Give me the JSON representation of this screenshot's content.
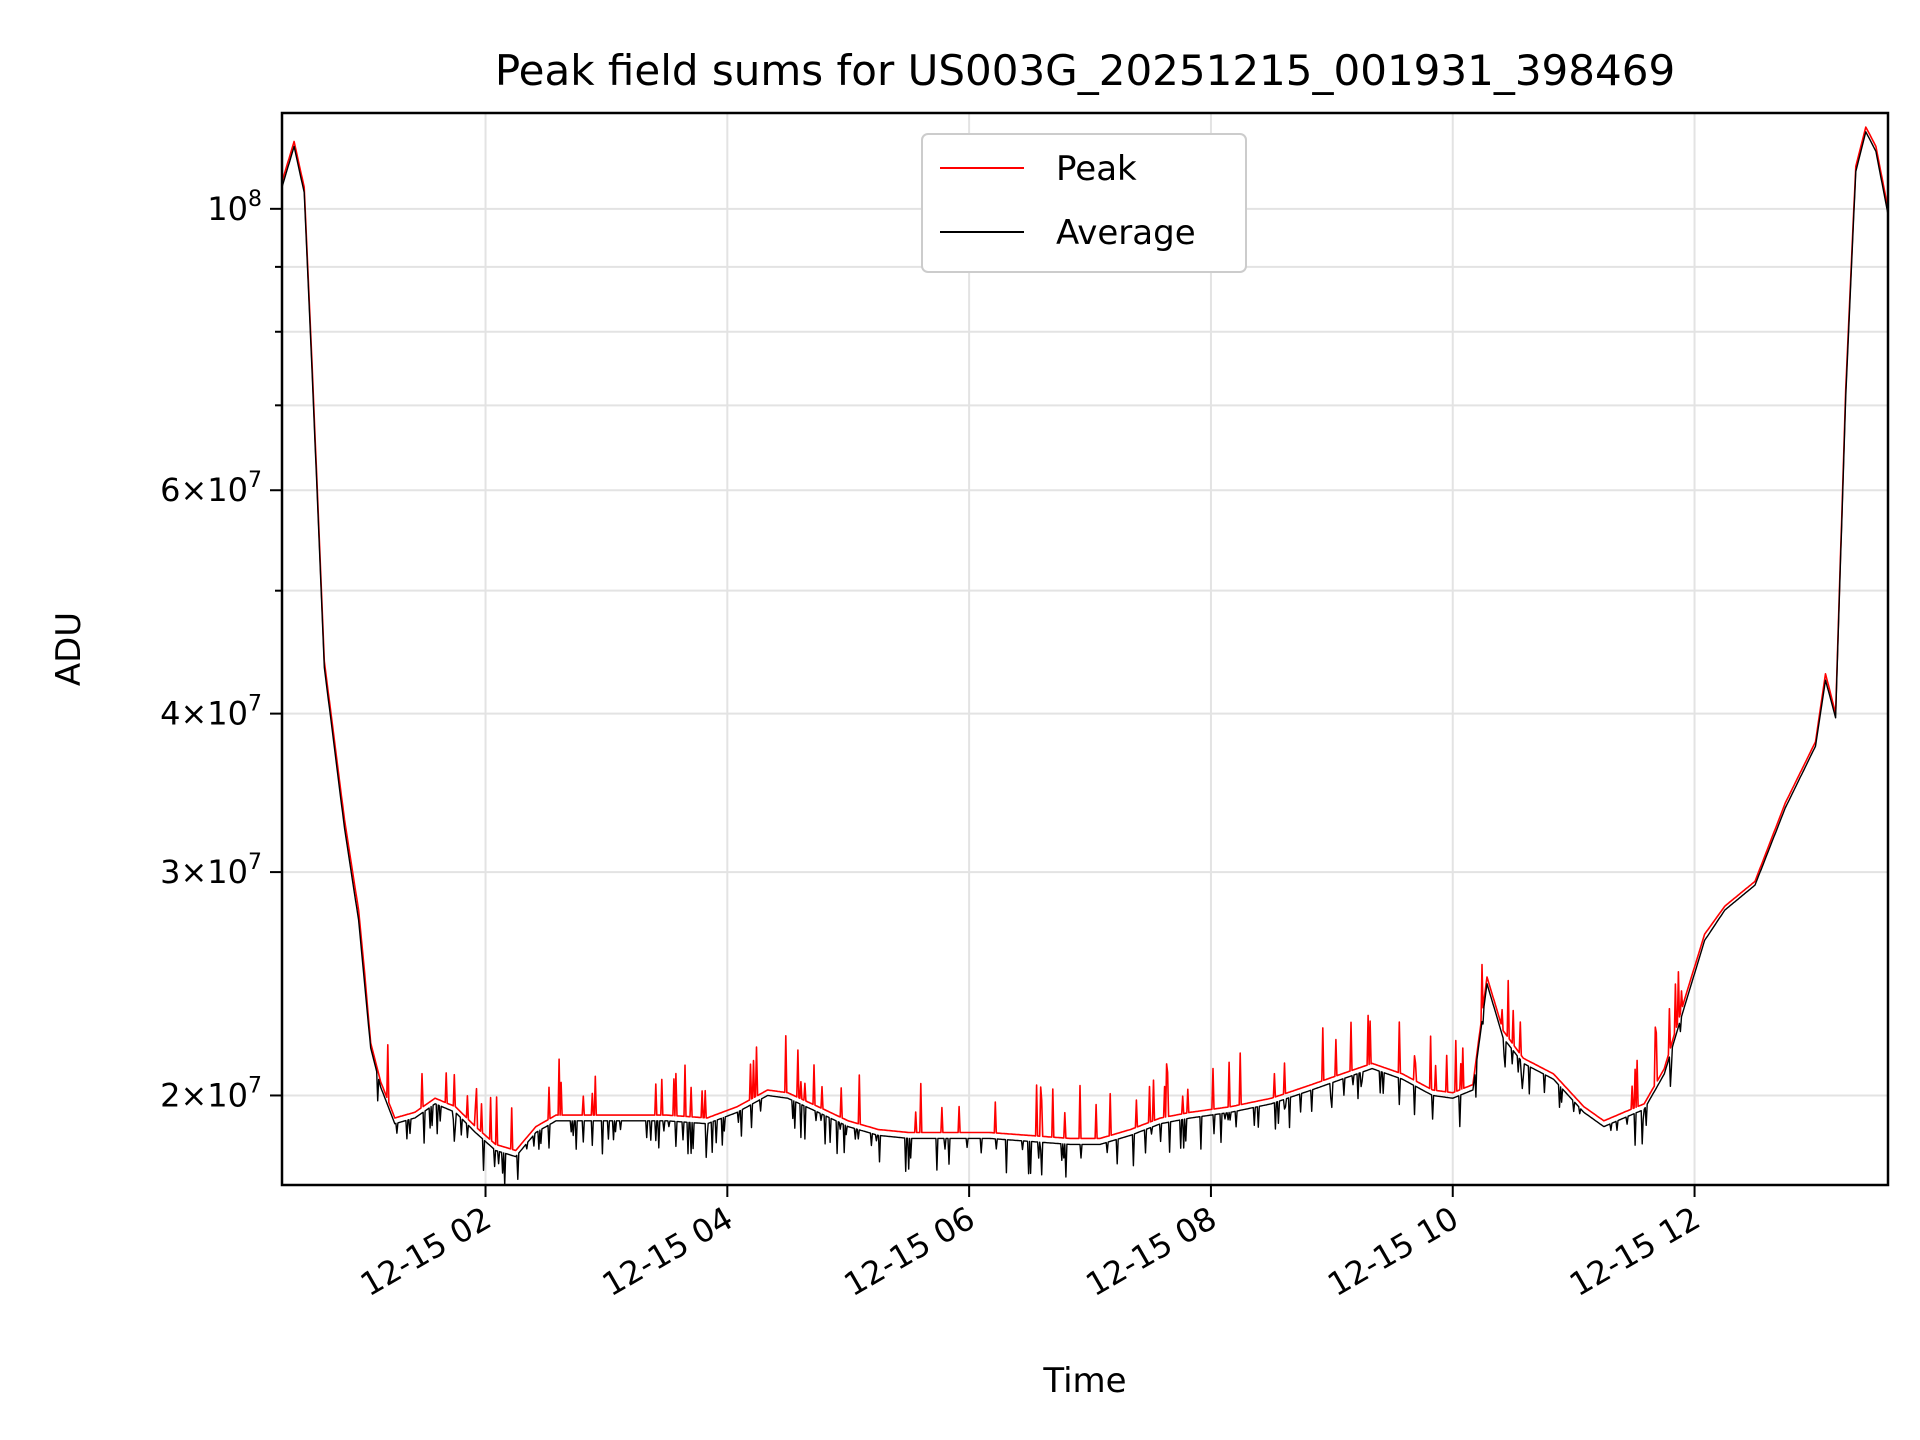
{
  "chart_data": {
    "type": "line",
    "title": "Peak field sums for US003G_20251215_001931_398469",
    "xlabel": "Time",
    "ylabel": "ADU",
    "y_scale": "log",
    "ylim": [
      17000000,
      119000000
    ],
    "xlim": [
      "2025-12-15 00:19",
      "2025-12-15 13:36"
    ],
    "grid": true,
    "legend_position": "top-center",
    "x_ticks": [
      "2025-12-15 02:00",
      "2025-12-15 04:00",
      "2025-12-15 06:00",
      "2025-12-15 08:00",
      "2025-12-15 10:00",
      "2025-12-15 12:00"
    ],
    "x_tick_labels": [
      "12-15 02",
      "12-15 04",
      "12-15 06",
      "12-15 08",
      "12-15 10",
      "12-15 12"
    ],
    "y_ticks": [
      {
        "value": 20000000,
        "mantissa": "2",
        "exp": "7"
      },
      {
        "value": 30000000,
        "mantissa": "3",
        "exp": "7"
      },
      {
        "value": 40000000,
        "mantissa": "4",
        "exp": "7"
      },
      {
        "value": 60000000,
        "mantissa": "6",
        "exp": "7"
      },
      {
        "value": 100000000,
        "mantissa": "",
        "exp": "8"
      }
    ],
    "y_minor_ticks": [
      50000000,
      70000000,
      80000000,
      90000000
    ],
    "series": [
      {
        "name": "Peak",
        "color": "#ff0000",
        "x": [
          "2025-12-15 00:19",
          "2025-12-15 00:25",
          "2025-12-15 00:30",
          "2025-12-15 00:34",
          "2025-12-15 00:40",
          "2025-12-15 00:50",
          "2025-12-15 00:57",
          "2025-12-15 01:00",
          "2025-12-15 01:03",
          "2025-12-15 01:08",
          "2025-12-15 01:15",
          "2025-12-15 01:25",
          "2025-12-15 01:35",
          "2025-12-15 01:45",
          "2025-12-15 01:55",
          "2025-12-15 02:05",
          "2025-12-15 02:15",
          "2025-12-15 02:25",
          "2025-12-15 02:35",
          "2025-12-15 02:50",
          "2025-12-15 03:10",
          "2025-12-15 03:30",
          "2025-12-15 03:50",
          "2025-12-15 04:05",
          "2025-12-15 04:20",
          "2025-12-15 04:30",
          "2025-12-15 04:45",
          "2025-12-15 05:00",
          "2025-12-15 05:15",
          "2025-12-15 05:30",
          "2025-12-15 05:50",
          "2025-12-15 06:10",
          "2025-12-15 06:30",
          "2025-12-15 06:50",
          "2025-12-15 07:05",
          "2025-12-15 07:20",
          "2025-12-15 07:35",
          "2025-12-15 07:50",
          "2025-12-15 08:10",
          "2025-12-15 08:30",
          "2025-12-15 08:50",
          "2025-12-15 09:05",
          "2025-12-15 09:20",
          "2025-12-15 09:35",
          "2025-12-15 09:50",
          "2025-12-15 10:00",
          "2025-12-15 10:10",
          "2025-12-15 10:17",
          "2025-12-15 10:25",
          "2025-12-15 10:35",
          "2025-12-15 10:50",
          "2025-12-15 11:05",
          "2025-12-15 11:15",
          "2025-12-15 11:25",
          "2025-12-15 11:35",
          "2025-12-15 11:45",
          "2025-12-15 11:55",
          "2025-12-15 12:05",
          "2025-12-15 12:15",
          "2025-12-15 12:30",
          "2025-12-15 12:45",
          "2025-12-15 13:00",
          "2025-12-15 13:05",
          "2025-12-15 13:10",
          "2025-12-15 13:15",
          "2025-12-15 13:20",
          "2025-12-15 13:25",
          "2025-12-15 13:30",
          "2025-12-15 13:36"
        ],
        "y": [
          105000000,
          113000000,
          104000000,
          75000000,
          44000000,
          33000000,
          28000000,
          25000000,
          22000000,
          20500000,
          19200000,
          19400000,
          19900000,
          19600000,
          18900000,
          18300000,
          18100000,
          18900000,
          19300000,
          19300000,
          19300000,
          19300000,
          19200000,
          19600000,
          20200000,
          20100000,
          19600000,
          19100000,
          18800000,
          18700000,
          18700000,
          18700000,
          18600000,
          18500000,
          18500000,
          18800000,
          19200000,
          19400000,
          19600000,
          19900000,
          20400000,
          20800000,
          21200000,
          20800000,
          20200000,
          20100000,
          20400000,
          24800000,
          22500000,
          21400000,
          20800000,
          19600000,
          19100000,
          19400000,
          19700000,
          21000000,
          23800000,
          26800000,
          28200000,
          29500000,
          34000000,
          38000000,
          43000000,
          40000000,
          72000000,
          108000000,
          116000000,
          112000000,
          100000000
        ],
        "spikes": true
      },
      {
        "name": "Average",
        "color": "#000000",
        "x": [
          "2025-12-15 00:19",
          "2025-12-15 00:25",
          "2025-12-15 00:30",
          "2025-12-15 00:34",
          "2025-12-15 00:40",
          "2025-12-15 00:50",
          "2025-12-15 00:57",
          "2025-12-15 01:00",
          "2025-12-15 01:03",
          "2025-12-15 01:08",
          "2025-12-15 01:15",
          "2025-12-15 01:25",
          "2025-12-15 01:35",
          "2025-12-15 01:45",
          "2025-12-15 01:55",
          "2025-12-15 02:05",
          "2025-12-15 02:15",
          "2025-12-15 02:25",
          "2025-12-15 02:35",
          "2025-12-15 02:50",
          "2025-12-15 03:10",
          "2025-12-15 03:30",
          "2025-12-15 03:50",
          "2025-12-15 04:05",
          "2025-12-15 04:20",
          "2025-12-15 04:30",
          "2025-12-15 04:45",
          "2025-12-15 05:00",
          "2025-12-15 05:15",
          "2025-12-15 05:30",
          "2025-12-15 05:50",
          "2025-12-15 06:10",
          "2025-12-15 06:30",
          "2025-12-15 06:50",
          "2025-12-15 07:05",
          "2025-12-15 07:20",
          "2025-12-15 07:35",
          "2025-12-15 07:50",
          "2025-12-15 08:10",
          "2025-12-15 08:30",
          "2025-12-15 08:50",
          "2025-12-15 09:05",
          "2025-12-15 09:20",
          "2025-12-15 09:35",
          "2025-12-15 09:50",
          "2025-12-15 10:00",
          "2025-12-15 10:10",
          "2025-12-15 10:17",
          "2025-12-15 10:25",
          "2025-12-15 10:35",
          "2025-12-15 10:50",
          "2025-12-15 11:05",
          "2025-12-15 11:15",
          "2025-12-15 11:25",
          "2025-12-15 11:35",
          "2025-12-15 11:45",
          "2025-12-15 11:55",
          "2025-12-15 12:05",
          "2025-12-15 12:15",
          "2025-12-15 12:30",
          "2025-12-15 12:45",
          "2025-12-15 13:00",
          "2025-12-15 13:05",
          "2025-12-15 13:10",
          "2025-12-15 13:15",
          "2025-12-15 13:20",
          "2025-12-15 13:25",
          "2025-12-15 13:30",
          "2025-12-15 13:36"
        ],
        "y": [
          104000000,
          112000000,
          103000000,
          74000000,
          43500000,
          32500000,
          27500000,
          24500000,
          21800000,
          20300000,
          19000000,
          19200000,
          19700000,
          19400000,
          18700000,
          18100000,
          17900000,
          18700000,
          19100000,
          19100000,
          19100000,
          19100000,
          19000000,
          19400000,
          20000000,
          19900000,
          19400000,
          18900000,
          18600000,
          18500000,
          18500000,
          18500000,
          18400000,
          18300000,
          18300000,
          18600000,
          19000000,
          19200000,
          19400000,
          19700000,
          20200000,
          20600000,
          21000000,
          20600000,
          20000000,
          19900000,
          20200000,
          24500000,
          22200000,
          21200000,
          20600000,
          19400000,
          18900000,
          19200000,
          19500000,
          20800000,
          23500000,
          26500000,
          28000000,
          29300000,
          33700000,
          37700000,
          42500000,
          39700000,
          71000000,
          107000000,
          115000000,
          111000000,
          99000000
        ],
        "dips": true
      }
    ]
  }
}
